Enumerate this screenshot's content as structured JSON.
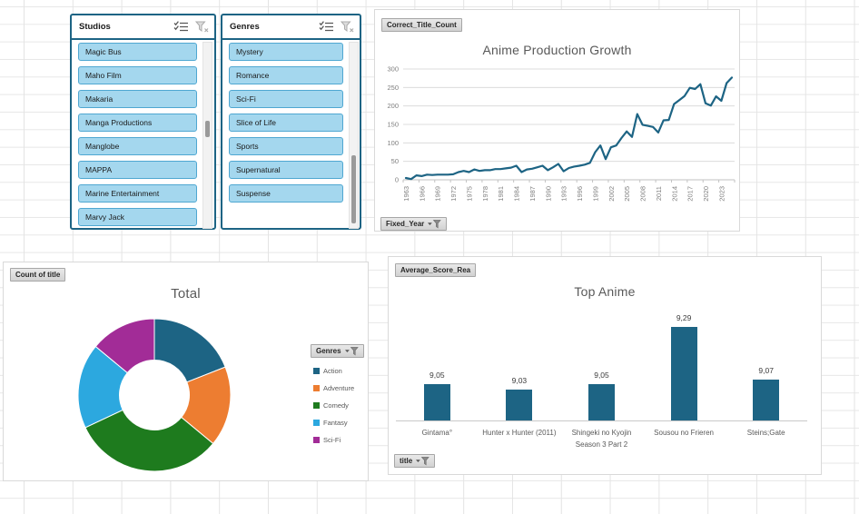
{
  "colors": {
    "accent": "#1d6484",
    "series": [
      "#1d6484",
      "#ed7d31",
      "#1e7b1e",
      "#2ca8df",
      "#a22c97"
    ],
    "slicer_item_fill": "#a4d7ee",
    "slicer_item_border": "#4fa7d1",
    "slicer_border": "#1d6484",
    "gridline": "#dcdcdc",
    "title_text": "#595959"
  },
  "slicers": [
    {
      "title": "Studios",
      "header_icons": [
        "multi-select",
        "clear-filter"
      ],
      "items": [
        "Magic Bus",
        "Maho Film",
        "Makaria",
        "Manga Productions",
        "Manglobe",
        "MAPPA",
        "Marine Entertainment",
        "Marvy Jack"
      ]
    },
    {
      "title": "Genres",
      "header_icons": [
        "multi-select",
        "clear-filter"
      ],
      "items": [
        "Mystery",
        "Romance",
        "Sci-Fi",
        "Slice of Life",
        "Sports",
        "Supernatural",
        "Suspense"
      ]
    }
  ],
  "chart_data": [
    {
      "type": "line",
      "title": "Anime Production Growth",
      "value_button": "Correct_Title_Count",
      "axis_button": "Fixed_Year",
      "ylim": [
        0,
        300
      ],
      "yticks": [
        0,
        50,
        100,
        150,
        200,
        250,
        300
      ],
      "xtick_every": 3,
      "grid": true,
      "years": [
        1963,
        1964,
        1965,
        1966,
        1967,
        1968,
        1969,
        1970,
        1971,
        1972,
        1973,
        1974,
        1975,
        1976,
        1977,
        1978,
        1979,
        1980,
        1981,
        1982,
        1983,
        1984,
        1985,
        1986,
        1987,
        1988,
        1989,
        1990,
        1991,
        1992,
        1993,
        1994,
        1995,
        1996,
        1997,
        1998,
        1999,
        2000,
        2001,
        2002,
        2003,
        2004,
        2005,
        2006,
        2007,
        2008,
        2009,
        2010,
        2011,
        2012,
        2013,
        2014,
        2015,
        2016,
        2017,
        2018,
        2019,
        2020,
        2021,
        2022,
        2023,
        2024,
        2025
      ],
      "values": [
        5,
        2,
        12,
        10,
        14,
        13,
        14,
        14,
        14,
        15,
        21,
        24,
        21,
        28,
        24,
        26,
        26,
        29,
        29,
        31,
        33,
        38,
        21,
        28,
        30,
        34,
        38,
        26,
        34,
        43,
        23,
        32,
        36,
        38,
        41,
        46,
        75,
        93,
        56,
        88,
        93,
        113,
        131,
        116,
        178,
        149,
        146,
        143,
        128,
        161,
        162,
        205,
        216,
        227,
        249,
        246,
        259,
        207,
        201,
        226,
        214,
        262,
        277
      ]
    },
    {
      "type": "pie",
      "subtype": "donut",
      "title": "Total",
      "field_button": "Count of title",
      "legend_title": "Genres",
      "legend_position": "right",
      "categories": [
        "Action",
        "Adventure",
        "Comedy",
        "Fantasy",
        "Sci-Fi"
      ],
      "values": [
        19,
        17,
        32,
        18,
        14
      ]
    },
    {
      "type": "bar",
      "title": "Top Anime",
      "field_button": "Average_Score_Rea",
      "axis_button": "title",
      "categories": [
        "Gintama°",
        "Hunter x Hunter (2011)",
        "Shingeki no Kyojin Season 3 Part 2",
        "Sousou no Frieren",
        "Steins;Gate"
      ],
      "values": [
        9.05,
        9.03,
        9.05,
        9.29,
        9.07
      ],
      "value_labels": [
        "9,05",
        "9,03",
        "9,05",
        "9,29",
        "9,07"
      ],
      "axis_min": 8.9,
      "data_labels": true,
      "y_axis_visible": false
    }
  ]
}
